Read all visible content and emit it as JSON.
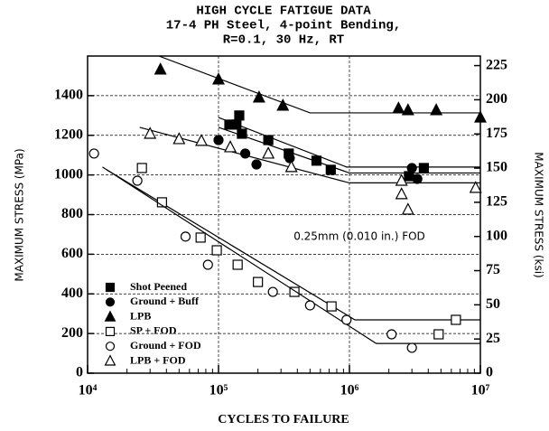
{
  "chart_data": {
    "type": "scatter",
    "title": [
      "HIGH CYCLE FATIGUE DATA",
      "17-4 PH Steel, 4-point Bending,",
      "R=0.1, 30 Hz, RT"
    ],
    "x_label": "CYCLES TO FAILURE",
    "y_label": "MAXIMUM STRESS (MPa)",
    "y2_label": "MAXIMUM STRESS (ksi)",
    "annotation": "0.25mm (0.010 in.) FOD",
    "xscale": "log",
    "grid": true,
    "legend": "lower left",
    "xlim": [
      10000,
      10000000
    ],
    "xticks": [
      {
        "value": 10000,
        "label": "10⁴"
      },
      {
        "value": 100000,
        "label": "10⁵"
      },
      {
        "value": 1000000,
        "label": "10⁶"
      },
      {
        "value": 10000000,
        "label": "10⁷"
      }
    ],
    "ylim": [
      0,
      1600
    ],
    "yticks": [
      0,
      200,
      400,
      600,
      800,
      1000,
      1200,
      1400
    ],
    "y2lim": [
      0,
      232
    ],
    "y2ticks": [
      0,
      25,
      50,
      75,
      100,
      125,
      150,
      175,
      200,
      225
    ],
    "series": [
      {
        "name": "Shot Peened",
        "color": "#000000",
        "marker": "square",
        "filled": true,
        "x": [
          121000,
          137000,
          144000,
          151000,
          240000,
          344000,
          560000,
          720000,
          2850000,
          3700000
        ],
        "values": [
          1254,
          1254,
          1300,
          1208,
          1176,
          1108,
          1072,
          1026,
          994,
          1035
        ],
        "fit": {
          "x": [
            100000,
            950000,
            10000000
          ],
          "y": [
            1290,
            1040,
            1040
          ]
        }
      },
      {
        "name": "Ground + Buff",
        "color": "#000000",
        "marker": "circle",
        "filled": true,
        "x": [
          100000,
          160000,
          195000,
          350000,
          3000000,
          3300000
        ],
        "values": [
          1176,
          1108,
          1053,
          1085,
          1035,
          980
        ],
        "fit": {
          "x": [
            100000,
            1000000,
            10000000
          ],
          "y": [
            1240,
            1010,
            1010
          ]
        }
      },
      {
        "name": "LPB",
        "color": "#000000",
        "marker": "triangle",
        "filled": true,
        "x": [
          36000,
          100000,
          204000,
          310000,
          2370000,
          2800000,
          4600000,
          10000000
        ],
        "values": [
          1532,
          1482,
          1391,
          1350,
          1336,
          1327,
          1327,
          1290
        ],
        "fit": {
          "x": [
            35000,
            500000,
            10000000
          ],
          "y": [
            1600,
            1313,
            1313
          ]
        }
      },
      {
        "name": "SP + FOD",
        "color": "#000000",
        "marker": "square",
        "filled": false,
        "x": [
          26000,
          37000,
          73000,
          97000,
          140000,
          200000,
          380000,
          730000,
          4800000,
          6500000
        ],
        "values": [
          1035,
          862,
          684,
          620,
          547,
          460,
          410,
          337,
          196,
          269
        ],
        "fit": {
          "x": [
            14000,
            1100000,
            10000000
          ],
          "y": [
            1026,
            269,
            269
          ]
        }
      },
      {
        "name": "Ground + FOD",
        "color": "#000000",
        "marker": "circle",
        "filled": false,
        "x": [
          11200,
          24000,
          56000,
          83000,
          260000,
          500000,
          950000,
          2100000,
          3000000
        ],
        "values": [
          1108,
          971,
          689,
          547,
          410,
          342,
          269,
          196,
          128
        ],
        "fit": {
          "x": [
            13000,
            1600000,
            10000000
          ],
          "y": [
            1040,
            150,
            150
          ]
        }
      },
      {
        "name": "LPB + FOD",
        "color": "#000000",
        "marker": "triangle",
        "filled": false,
        "x": [
          30000,
          50000,
          74000,
          123000,
          240000,
          360000,
          2500000,
          2500000,
          2800000,
          9200000
        ],
        "values": [
          1208,
          1181,
          1172,
          1140,
          1108,
          1040,
          971,
          903,
          825,
          935
        ],
        "fit": {
          "x": [
            25000,
            1000000,
            10000000
          ],
          "y": [
            1240,
            960,
            960
          ]
        }
      }
    ]
  }
}
